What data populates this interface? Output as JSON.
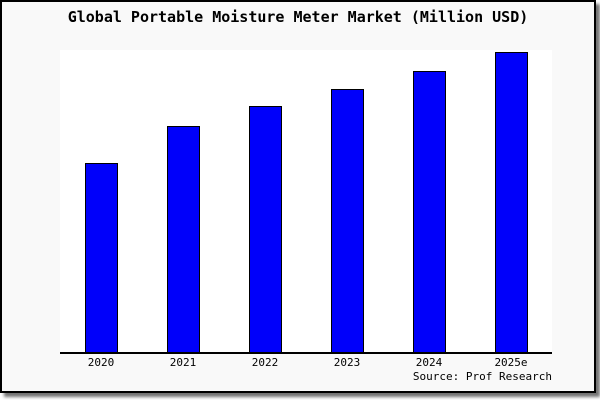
{
  "window": {
    "background_color": "#f9f9f9",
    "border_color": "#000000",
    "plot_background_color": "#ffffff"
  },
  "chart_data": {
    "type": "bar",
    "title": "Global Portable Moisture Meter Market (Million USD)",
    "categories": [
      "2020",
      "2021",
      "2022",
      "2023",
      "2024",
      "2025e"
    ],
    "values": [
      62.9,
      75.2,
      81.9,
      87.7,
      93.7,
      100
    ],
    "value_scale": "relative index, tallest bar (2025e) = 100; chart displays no y-axis or value labels",
    "xlabel": "",
    "ylabel": "",
    "ylim": [
      0,
      100
    ],
    "y_axis_visible": false,
    "gridlines": false,
    "legend_position": "none",
    "bar_color": "#0000fa",
    "bar_border_color": "#000000",
    "axis_line_color": "#000000"
  },
  "source": {
    "text": "Source: Prof Research"
  }
}
